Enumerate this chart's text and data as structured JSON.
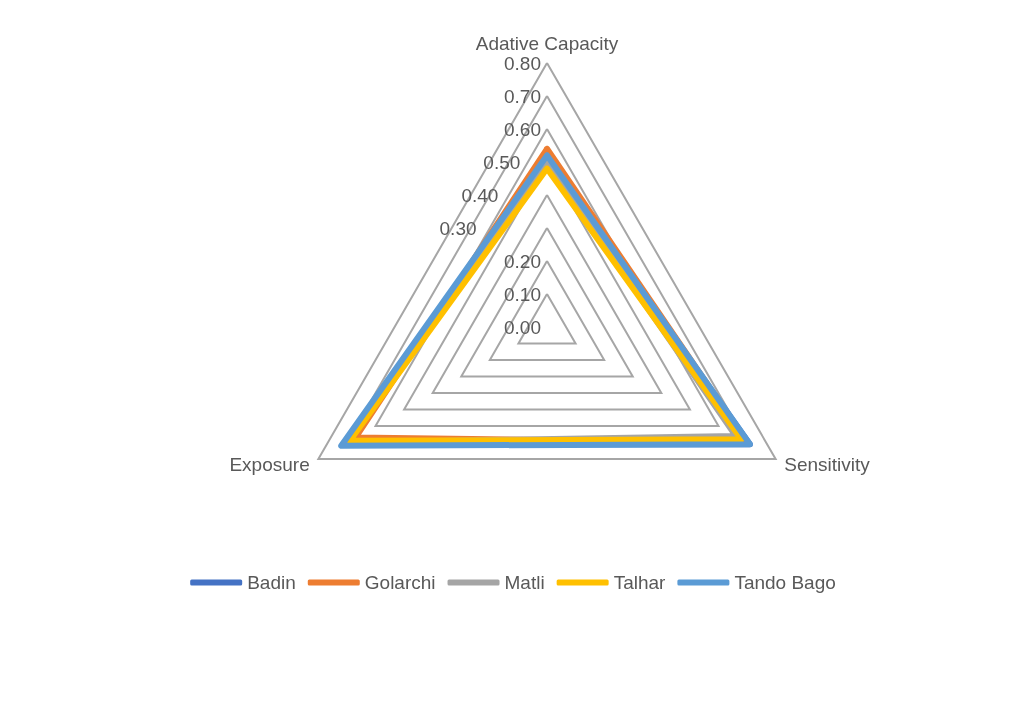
{
  "chart_data": {
    "type": "radar",
    "categories": [
      "Adative Capacity",
      "Sensitivity",
      "Exposure"
    ],
    "ylim": [
      0,
      0.8
    ],
    "yticks": [
      {
        "value": 0,
        "label": "0.00"
      },
      {
        "value": 0.1,
        "label": "0.10"
      },
      {
        "value": 0.2,
        "label": "0.20"
      },
      {
        "value": 0.3,
        "label": "0.30"
      },
      {
        "value": 0.4,
        "label": "0.40"
      },
      {
        "value": 0.5,
        "label": "0.50"
      },
      {
        "value": 0.6,
        "label": "0.60"
      },
      {
        "value": 0.7,
        "label": "0.70"
      },
      {
        "value": 0.8,
        "label": "0.80"
      }
    ],
    "grid": true,
    "legend": "bottom",
    "marker": "none",
    "line_style": "solid",
    "series": [
      {
        "name": "Badin",
        "color": "#4472c4",
        "values": [
          0.51,
          0.71,
          0.71
        ]
      },
      {
        "name": "Golarchi",
        "color": "#ed7d31",
        "values": [
          0.54,
          0.7,
          0.67
        ]
      },
      {
        "name": "Matli",
        "color": "#a5a5a5",
        "values": [
          0.5,
          0.66,
          0.7
        ]
      },
      {
        "name": "Talhar",
        "color": "#ffc000",
        "values": [
          0.48,
          0.68,
          0.69
        ]
      },
      {
        "name": "Tando Bago",
        "color": "#5b9bd5",
        "values": [
          0.52,
          0.71,
          0.72
        ]
      }
    ]
  }
}
